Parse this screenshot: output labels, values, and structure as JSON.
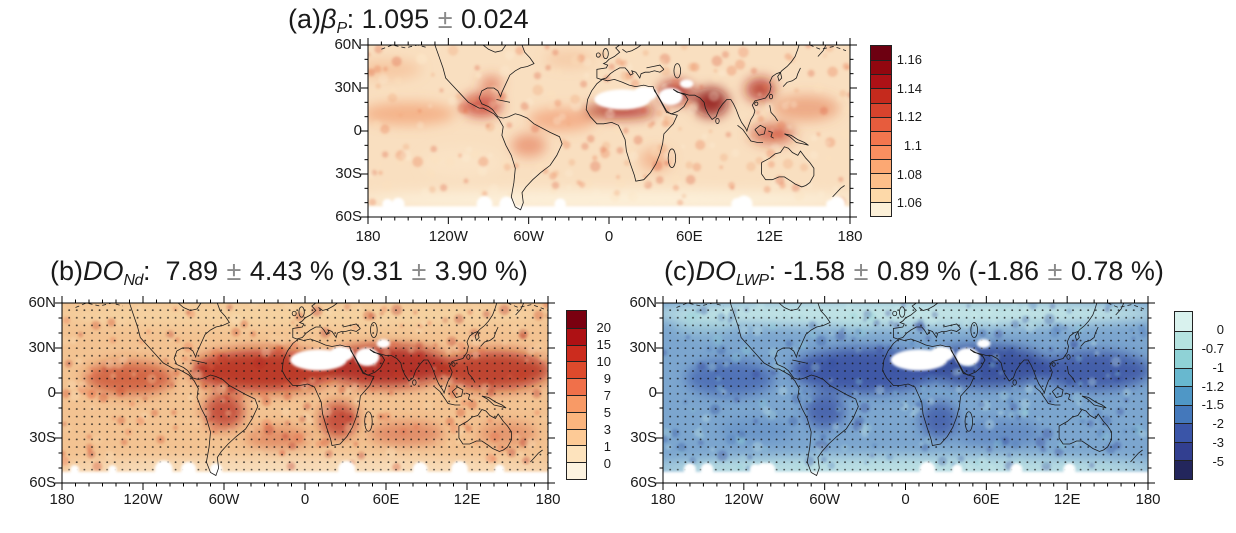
{
  "figure": {
    "description": "Three-panel global map figure (60S-60N) with sequential colorbars",
    "background": "#ffffff",
    "pm_symbol_color": "#8a8a8a"
  },
  "panels": [
    {
      "id": "a",
      "title_segments": [
        {
          "text": "(a)"
        },
        {
          "text": "β",
          "italic": true
        },
        {
          "text": "P",
          "italic": true,
          "sub": true
        },
        {
          "text": ": 1.095 "
        },
        {
          "text": "±",
          "pm": true
        },
        {
          "text": " 0.024"
        }
      ],
      "x_tick_labels": [
        "180",
        "120W",
        "60W",
        "0",
        "60E",
        "12E",
        "180"
      ],
      "y_tick_labels": [
        "60N",
        "30N",
        "0",
        "30S",
        "60S"
      ],
      "colorbar": {
        "segments": 12,
        "colors_top_to_bottom": [
          "#6d0011",
          "#92070f",
          "#ad1116",
          "#c52a1d",
          "#d8432d",
          "#e75c3d",
          "#f2764e",
          "#fa8f60",
          "#fca873",
          "#fdbf8a",
          "#fdd9a9",
          "#fcf0d8"
        ],
        "labels_top_to_bottom": [
          "1.16",
          "1.14",
          "1.12",
          "1.1",
          "1.08",
          "1.06"
        ],
        "label_boundary_indices_top_to_bottom": [
          1,
          3,
          5,
          7,
          9,
          11
        ]
      },
      "stippled": false
    },
    {
      "id": "b",
      "title_segments": [
        {
          "text": "(b)"
        },
        {
          "text": "DO",
          "italic": true
        },
        {
          "text": "Nd",
          "italic": true,
          "sub": true
        },
        {
          "text": ":  7.89 "
        },
        {
          "text": "±",
          "pm": true
        },
        {
          "text": " 4.43 % ("
        },
        {
          "text": "9.31 "
        },
        {
          "text": "±",
          "pm": true
        },
        {
          "text": " 3.90 %)"
        }
      ],
      "x_tick_labels": [
        "180",
        "120W",
        "60W",
        "0",
        "60E",
        "12E",
        "180"
      ],
      "y_tick_labels": [
        "60N",
        "30N",
        "0",
        "30S",
        "60S"
      ],
      "colorbar": {
        "segments": 10,
        "colors_top_to_bottom": [
          "#7a0010",
          "#ae1114",
          "#cc2c1e",
          "#dd4a2c",
          "#f0704a",
          "#f89a66",
          "#fbb57e",
          "#fdca96",
          "#fde3bd",
          "#fdf3e0"
        ],
        "labels_top_to_bottom": [
          "20",
          "15",
          "10",
          "9",
          "7",
          "5",
          "3",
          "1",
          "0"
        ],
        "label_boundary_indices_top_to_bottom": [
          1,
          2,
          3,
          4,
          5,
          6,
          7,
          8,
          9
        ]
      },
      "stippled": true
    },
    {
      "id": "c",
      "title_segments": [
        {
          "text": "(c)"
        },
        {
          "text": "DO",
          "italic": true
        },
        {
          "text": "LWP",
          "italic": true,
          "sub": true
        },
        {
          "text": ": -1.58 "
        },
        {
          "text": "±",
          "pm": true
        },
        {
          "text": " 0.89 % ("
        },
        {
          "text": "-1.86 "
        },
        {
          "text": "±",
          "pm": true
        },
        {
          "text": " 0.78 %)"
        }
      ],
      "x_tick_labels": [
        "180",
        "120W",
        "60W",
        "0",
        "60E",
        "12E",
        "180"
      ],
      "y_tick_labels": [
        "60N",
        "30N",
        "0",
        "30S",
        "60S"
      ],
      "colorbar": {
        "segments": 9,
        "colors_top_to_bottom": [
          "#d9f2ee",
          "#b5e3e0",
          "#8fd2d6",
          "#68b8cf",
          "#4f97c6",
          "#4478bb",
          "#3a55a8",
          "#323f90",
          "#23265c"
        ],
        "labels_top_to_bottom": [
          "0",
          "-0.7",
          "-1",
          "-1.2",
          "-1.5",
          "-2",
          "-3",
          "-5"
        ],
        "label_boundary_indices_top_to_bottom": [
          1,
          2,
          3,
          4,
          5,
          6,
          7,
          8
        ]
      },
      "stippled": true
    }
  ],
  "chart_data": [
    {
      "type": "heatmap",
      "panel": "a",
      "variable": "β_P",
      "title": "(a)βP: 1.095 ± 0.024",
      "mean_value": 1.095,
      "uncertainty": 0.024,
      "x": "longitude",
      "y": "latitude",
      "lon_ticks": [
        "180",
        "120W",
        "60W",
        "0",
        "60E",
        "12E",
        "180"
      ],
      "lat_ticks": [
        "60N",
        "30N",
        "0",
        "30S",
        "60S"
      ],
      "lat_range": [
        "60S",
        "60N"
      ],
      "color_levels": [
        1.06,
        1.07,
        1.08,
        1.09,
        1.1,
        1.11,
        1.12,
        1.13,
        1.14,
        1.15,
        1.16
      ],
      "labeled_levels": [
        1.16,
        1.14,
        1.12,
        1.1,
        1.08,
        1.06
      ],
      "colormap": "cream-to-dark-red sequential, 12 bins",
      "stippling": false,
      "white_masked_regions": [
        "Sahara",
        "Arabian Peninsula",
        "poleward of ~55S"
      ],
      "visually_darkest_regions": [
        "Sahel",
        "Middle East",
        "India",
        "East China",
        "Central America",
        "Maritime Continent"
      ]
    },
    {
      "type": "heatmap",
      "panel": "b",
      "variable": "DO_Nd",
      "title": "(b)DONd:  7.89 ± 4.43 % (9.31 ± 3.90 %)",
      "mean_value": 7.89,
      "uncertainty": 4.43,
      "units": "%",
      "secondary_mean": 9.31,
      "secondary_uncertainty": 3.9,
      "x": "longitude",
      "y": "latitude",
      "lon_ticks": [
        "180",
        "120W",
        "60W",
        "0",
        "60E",
        "12E",
        "180"
      ],
      "lat_ticks": [
        "60N",
        "30N",
        "0",
        "30S",
        "60S"
      ],
      "color_levels": [
        0,
        1,
        3,
        5,
        7,
        9,
        10,
        15,
        20
      ],
      "colormap": "cream-to-dark-red sequential, 10 bins",
      "stippling": true,
      "white_masked_regions": [
        "Sahara",
        "Arabian Peninsula",
        "poleward of ~55S"
      ],
      "visually_darkest_regions": [
        "tropical band ~0-30N worldwide",
        "South America",
        "southern Africa"
      ]
    },
    {
      "type": "heatmap",
      "panel": "c",
      "variable": "DO_LWP",
      "title": "(c)DOLWP: -1.58 ± 0.89 % (-1.86 ± 0.78 %)",
      "mean_value": -1.58,
      "uncertainty": 0.89,
      "units": "%",
      "secondary_mean": -1.86,
      "secondary_uncertainty": 0.78,
      "x": "longitude",
      "y": "latitude",
      "lon_ticks": [
        "180",
        "120W",
        "60W",
        "0",
        "60E",
        "12E",
        "180"
      ],
      "lat_ticks": [
        "60N",
        "30N",
        "0",
        "30S",
        "60S"
      ],
      "color_levels": [
        0,
        -0.7,
        -1,
        -1.2,
        -1.5,
        -2,
        -3,
        -5
      ],
      "colormap": "light-cyan-to-dark-navy sequential, 9 bins",
      "stippling": true,
      "white_masked_regions": [
        "Sahara",
        "Arabian Peninsula",
        "poleward of ~55S"
      ],
      "visually_darkest_regions": [
        "tropical band ~0-35N worldwide",
        "South America",
        "southern Africa"
      ]
    }
  ]
}
